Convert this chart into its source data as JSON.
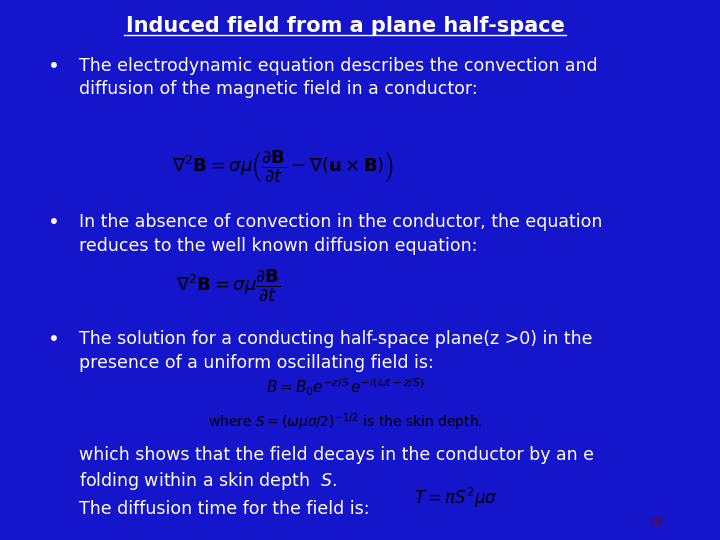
{
  "bg_color": "#1515cc",
  "title": "Induced field from a plane half-space",
  "title_color": "#ffffff",
  "title_fontsize": 15,
  "bullet_color": "#ffffff",
  "bullet_fontsize": 12.5,
  "equation_box_color": "#ffffff",
  "equation_text_color": "#000000",
  "page_num": "28",
  "page_num_color": "#800000",
  "bullets": [
    "The electrodynamic equation describes the convection and\ndiffusion of the magnetic field in a conductor:",
    "In the absence of convection in the conductor, the equation\nreduces to the well known diffusion equation:",
    "The solution for a conducting half-space plane(z >0) in the\npresence of a uniform oscillating field is:"
  ],
  "eq1_latex": "$\\nabla^2\\mathbf{B} = \\sigma\\mu\\left(\\dfrac{\\partial\\mathbf{B}}{\\partial t} - \\nabla(\\mathbf{u}\\times\\mathbf{B})\\right)$",
  "eq2_latex": "$\\nabla^2\\mathbf{B} = \\sigma\\mu\\dfrac{\\partial\\mathbf{B}}{\\partial t}$",
  "eq3_line1": "$B = B_0 e^{-z/S}\\, e^{-i(\\omega t - z/S)}$",
  "eq3_line2": "where $S = (\\omega\\mu\\sigma/2)^{-1/2}$ is the skin depth.",
  "bottom_text1": "which shows that the field decays in the conductor by an e\nfolding within a skin depth  $S$.",
  "bottom_text2": "The diffusion time for the field is:",
  "eq4_latex": "$T = \\pi S^2 \\mu\\sigma$"
}
